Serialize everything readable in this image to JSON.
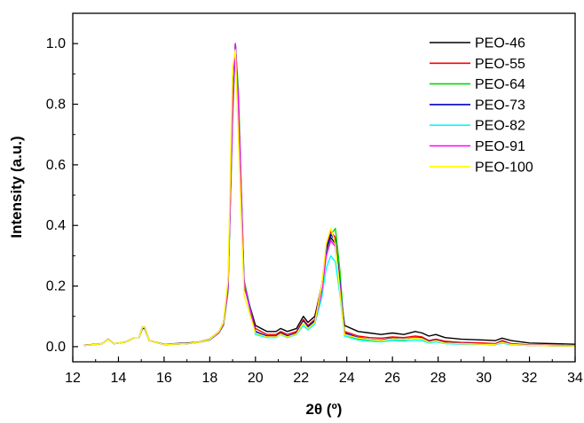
{
  "chart_data": {
    "type": "line",
    "title": "",
    "xlabel": "2θ (º)",
    "ylabel": "Intensity (a.u.)",
    "xlim": [
      12,
      34
    ],
    "ylim": [
      -0.05,
      1.1
    ],
    "xticks": [
      12,
      14,
      16,
      18,
      20,
      22,
      24,
      26,
      28,
      30,
      32,
      34
    ],
    "yticks": [
      0.0,
      0.2,
      0.4,
      0.6,
      0.8,
      1.0
    ],
    "xtick_labels": [
      "12",
      "14",
      "16",
      "18",
      "20",
      "22",
      "24",
      "26",
      "28",
      "30",
      "32",
      "34"
    ],
    "ytick_labels": [
      "0.0",
      "0.2",
      "0.4",
      "0.6",
      "0.8",
      "1.0"
    ],
    "grid": false,
    "legend_position": "top-right",
    "x": [
      12.5,
      13.0,
      13.3,
      13.55,
      13.8,
      14.3,
      14.7,
      14.9,
      15.05,
      15.15,
      15.35,
      16.0,
      17.0,
      17.5,
      18.0,
      18.4,
      18.6,
      18.8,
      19.0,
      19.12,
      19.25,
      19.5,
      20.0,
      20.5,
      20.9,
      21.1,
      21.4,
      21.8,
      22.1,
      22.3,
      22.6,
      22.9,
      23.1,
      23.3,
      23.5,
      23.7,
      23.9,
      24.5,
      25.0,
      25.5,
      26.0,
      26.5,
      27.0,
      27.3,
      27.6,
      27.9,
      28.3,
      29.0,
      30.0,
      30.5,
      30.8,
      31.2,
      32.0,
      33.0,
      34.0
    ],
    "series": [
      {
        "name": "PEO-46",
        "color": "#000000",
        "values": [
          0.005,
          0.008,
          0.01,
          0.025,
          0.01,
          0.015,
          0.03,
          0.03,
          0.06,
          0.06,
          0.02,
          0.008,
          0.012,
          0.015,
          0.025,
          0.05,
          0.08,
          0.2,
          0.8,
          1.0,
          0.8,
          0.2,
          0.07,
          0.05,
          0.05,
          0.06,
          0.05,
          0.06,
          0.1,
          0.08,
          0.1,
          0.2,
          0.32,
          0.36,
          0.34,
          0.2,
          0.07,
          0.05,
          0.045,
          0.04,
          0.045,
          0.04,
          0.05,
          0.045,
          0.035,
          0.04,
          0.03,
          0.025,
          0.022,
          0.02,
          0.028,
          0.02,
          0.012,
          0.01,
          0.008
        ]
      },
      {
        "name": "PEO-55",
        "color": "#ff0000",
        "values": [
          0.005,
          0.007,
          0.01,
          0.025,
          0.01,
          0.015,
          0.03,
          0.03,
          0.065,
          0.065,
          0.02,
          0.007,
          0.01,
          0.014,
          0.024,
          0.048,
          0.08,
          0.2,
          0.8,
          1.0,
          0.8,
          0.2,
          0.06,
          0.04,
          0.04,
          0.05,
          0.04,
          0.05,
          0.09,
          0.07,
          0.09,
          0.2,
          0.33,
          0.38,
          0.36,
          0.21,
          0.05,
          0.035,
          0.03,
          0.028,
          0.032,
          0.03,
          0.035,
          0.032,
          0.02,
          0.025,
          0.018,
          0.014,
          0.012,
          0.01,
          0.02,
          0.01,
          0.006,
          0.004,
          0.003
        ]
      },
      {
        "name": "PEO-64",
        "color": "#00dd00",
        "values": [
          0.004,
          0.007,
          0.01,
          0.024,
          0.01,
          0.015,
          0.03,
          0.03,
          0.065,
          0.065,
          0.02,
          0.007,
          0.01,
          0.014,
          0.022,
          0.045,
          0.07,
          0.18,
          0.75,
          1.0,
          0.85,
          0.22,
          0.05,
          0.035,
          0.035,
          0.045,
          0.035,
          0.045,
          0.08,
          0.065,
          0.085,
          0.18,
          0.31,
          0.37,
          0.39,
          0.25,
          0.04,
          0.025,
          0.022,
          0.02,
          0.025,
          0.022,
          0.03,
          0.025,
          0.015,
          0.02,
          0.012,
          0.01,
          0.008,
          0.007,
          0.015,
          0.007,
          0.004,
          0.003,
          0.002
        ]
      },
      {
        "name": "PEO-73",
        "color": "#0000cc",
        "values": [
          0.004,
          0.007,
          0.01,
          0.024,
          0.01,
          0.015,
          0.03,
          0.03,
          0.063,
          0.063,
          0.02,
          0.007,
          0.01,
          0.014,
          0.023,
          0.047,
          0.075,
          0.19,
          0.78,
          1.0,
          0.82,
          0.21,
          0.05,
          0.035,
          0.035,
          0.045,
          0.035,
          0.045,
          0.085,
          0.065,
          0.085,
          0.19,
          0.32,
          0.37,
          0.35,
          0.21,
          0.045,
          0.03,
          0.025,
          0.022,
          0.028,
          0.025,
          0.03,
          0.028,
          0.017,
          0.022,
          0.014,
          0.011,
          0.009,
          0.008,
          0.017,
          0.008,
          0.005,
          0.003,
          0.002
        ]
      },
      {
        "name": "PEO-82",
        "color": "#00ffff",
        "values": [
          0.004,
          0.007,
          0.01,
          0.024,
          0.01,
          0.015,
          0.03,
          0.03,
          0.063,
          0.063,
          0.02,
          0.007,
          0.01,
          0.014,
          0.023,
          0.047,
          0.075,
          0.19,
          0.78,
          1.0,
          0.82,
          0.21,
          0.04,
          0.03,
          0.03,
          0.04,
          0.03,
          0.04,
          0.07,
          0.055,
          0.075,
          0.16,
          0.26,
          0.3,
          0.28,
          0.17,
          0.035,
          0.022,
          0.018,
          0.016,
          0.02,
          0.018,
          0.022,
          0.02,
          0.012,
          0.016,
          0.01,
          0.008,
          0.007,
          0.006,
          0.012,
          0.006,
          0.004,
          0.003,
          0.002
        ]
      },
      {
        "name": "PEO-91",
        "color": "#ff00ff",
        "values": [
          0.004,
          0.007,
          0.01,
          0.024,
          0.01,
          0.015,
          0.03,
          0.03,
          0.064,
          0.064,
          0.02,
          0.007,
          0.01,
          0.014,
          0.023,
          0.047,
          0.075,
          0.19,
          0.78,
          1.0,
          0.82,
          0.21,
          0.045,
          0.032,
          0.032,
          0.042,
          0.032,
          0.042,
          0.08,
          0.06,
          0.08,
          0.18,
          0.3,
          0.35,
          0.33,
          0.2,
          0.04,
          0.028,
          0.024,
          0.02,
          0.026,
          0.024,
          0.028,
          0.026,
          0.015,
          0.02,
          0.012,
          0.01,
          0.008,
          0.007,
          0.015,
          0.007,
          0.004,
          0.003,
          0.002
        ]
      },
      {
        "name": "PEO-100",
        "color": "#ffff00",
        "values": [
          0.004,
          0.007,
          0.01,
          0.024,
          0.01,
          0.015,
          0.03,
          0.03,
          0.064,
          0.064,
          0.02,
          0.007,
          0.01,
          0.014,
          0.024,
          0.05,
          0.08,
          0.22,
          0.92,
          0.98,
          0.7,
          0.17,
          0.045,
          0.032,
          0.032,
          0.042,
          0.032,
          0.042,
          0.08,
          0.06,
          0.08,
          0.2,
          0.34,
          0.39,
          0.34,
          0.18,
          0.04,
          0.028,
          0.024,
          0.02,
          0.026,
          0.024,
          0.028,
          0.026,
          0.015,
          0.02,
          0.012,
          0.01,
          0.008,
          0.007,
          0.015,
          0.007,
          0.004,
          0.003,
          0.002
        ]
      }
    ]
  }
}
